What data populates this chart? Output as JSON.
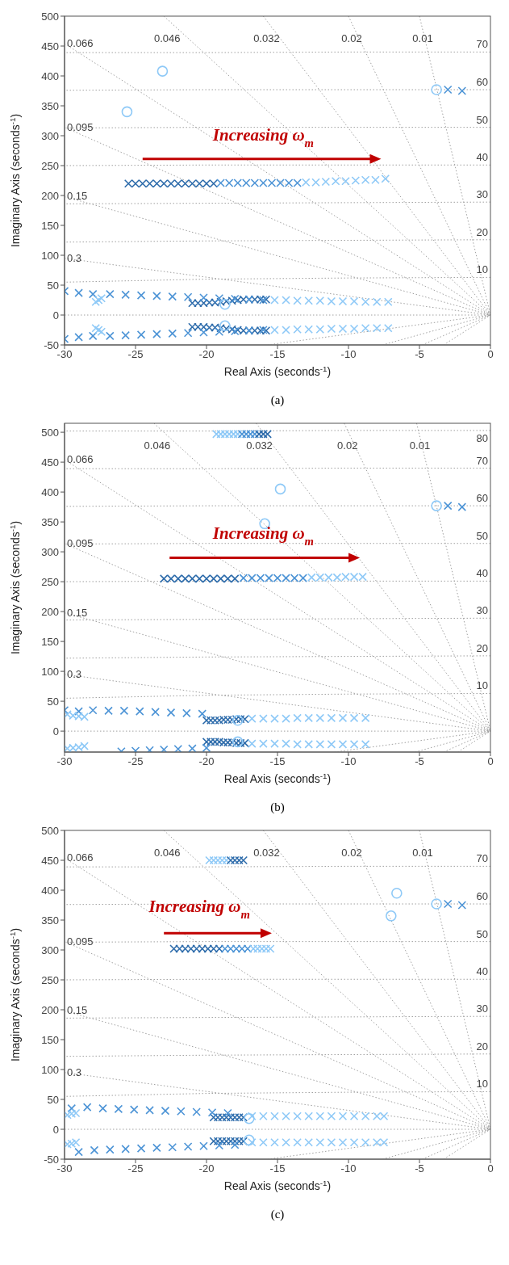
{
  "chart_data": [
    {
      "type": "scatter",
      "xlabel": "Real Axis (seconds$^{-1}$)",
      "ylabel": "Imaginary Axis (seconds$^{-1}$)",
      "annotations": [
        "Increasing ω$_{m}$",
        "(a)"
      ],
      "xlim": [
        -30,
        0
      ],
      "xticks": [
        -30,
        -25,
        -20,
        -15,
        -10,
        -5,
        0
      ],
      "ylim": [
        -50,
        500
      ],
      "yticks": [
        -50,
        0,
        50,
        100,
        150,
        200,
        250,
        300,
        350,
        400,
        450,
        500
      ],
      "series": [
        {
          "type": "line",
          "name": "0.3",
          "color": "#a0a0a0",
          "line_style": "dotted",
          "marker": "none",
          "x": [
            -30,
            0
          ],
          "values": [
            95,
            0
          ]
        },
        {
          "type": "line",
          "name": "0.15",
          "color": "#a0a0a0",
          "line_style": "dotted",
          "marker": "none",
          "x": [
            -30,
            0
          ],
          "values": [
            198,
            0
          ]
        },
        {
          "type": "line",
          "name": "0.095",
          "color": "#a0a0a0",
          "line_style": "dotted",
          "marker": "none",
          "x": [
            -30,
            0
          ],
          "values": [
            314,
            0
          ]
        },
        {
          "type": "line",
          "name": "0.066",
          "color": "#a0a0a0",
          "line_style": "dotted",
          "marker": "none",
          "x": [
            -30,
            0
          ],
          "values": [
            454,
            0
          ]
        },
        {
          "type": "line",
          "name": "0.046",
          "color": "#a0a0a0",
          "line_style": "dotted",
          "marker": "none",
          "x": [
            -23,
            0
          ],
          "values": [
            500,
            0
          ]
        },
        {
          "type": "line",
          "name": "0.032",
          "color": "#a0a0a0",
          "line_style": "dotted",
          "marker": "none",
          "x": [
            -16,
            0
          ],
          "values": [
            500,
            0
          ]
        },
        {
          "type": "line",
          "name": "0.02",
          "color": "#a0a0a0",
          "line_style": "dotted",
          "marker": "none",
          "x": [
            -10,
            0
          ],
          "values": [
            500,
            0
          ]
        },
        {
          "type": "line",
          "name": "0.01",
          "color": "#a0a0a0",
          "line_style": "dotted",
          "marker": "none",
          "x": [
            -5,
            0
          ],
          "values": [
            500,
            0
          ]
        },
        {
          "type": "line",
          "color": "#a0a0a0",
          "line_style": "dotted",
          "marker": "none",
          "x": [
            -15.7,
            0
          ],
          "values": [
            -50,
            0
          ]
        },
        {
          "type": "line",
          "color": "#a0a0a0",
          "line_style": "dotted",
          "marker": "none",
          "x": [
            -7.6,
            0
          ],
          "values": [
            -50,
            0
          ]
        },
        {
          "type": "line",
          "color": "#a0a0a0",
          "line_style": "dotted",
          "marker": "none",
          "x": [
            -4.8,
            0
          ],
          "values": [
            -50,
            0
          ]
        },
        {
          "type": "line",
          "color": "#a0a0a0",
          "line_style": "dotted",
          "marker": "none",
          "x": [
            -3.3,
            0
          ],
          "values": [
            -50,
            0
          ]
        },
        {
          "type": "line",
          "color": "#a0a0a0",
          "line_style": "dotted",
          "marker": "none",
          "x": [
            -30,
            0
          ],
          "values": [
            0,
            0
          ]
        },
        {
          "type": "line",
          "name": "10",
          "color": "#a0a0a0",
          "line_style": "dotted",
          "marker": "none",
          "x": [
            0,
            -10,
            -20,
            -30
          ],
          "values": [
            63,
            62,
            60,
            55
          ]
        },
        {
          "type": "line",
          "name": "20",
          "color": "#a0a0a0",
          "line_style": "dotted",
          "marker": "none",
          "x": [
            0,
            -10,
            -20,
            -30
          ],
          "values": [
            126,
            125,
            124,
            122
          ]
        },
        {
          "type": "line",
          "name": "30",
          "color": "#a0a0a0",
          "line_style": "dotted",
          "marker": "none",
          "x": [
            0,
            -10,
            -20,
            -30
          ],
          "values": [
            189,
            188,
            187,
            186
          ]
        },
        {
          "type": "line",
          "name": "40",
          "color": "#a0a0a0",
          "line_style": "dotted",
          "marker": "none",
          "x": [
            0,
            -10,
            -20,
            -30
          ],
          "values": [
            251,
            251,
            251,
            250
          ]
        },
        {
          "type": "line",
          "name": "50",
          "color": "#a0a0a0",
          "line_style": "dotted",
          "marker": "none",
          "x": [
            0,
            -10,
            -20,
            -30
          ],
          "values": [
            314,
            314,
            314,
            313
          ]
        },
        {
          "type": "line",
          "name": "60",
          "color": "#a0a0a0",
          "line_style": "dotted",
          "marker": "none",
          "x": [
            0,
            -10,
            -20,
            -30
          ],
          "values": [
            377,
            377,
            377,
            376
          ]
        },
        {
          "type": "line",
          "name": "70",
          "color": "#a0a0a0",
          "line_style": "dotted",
          "marker": "none",
          "x": [
            0,
            -10,
            -20,
            -30
          ],
          "values": [
            440,
            440,
            439,
            439
          ]
        },
        {
          "marker": "cross",
          "color": "#2e6cab",
          "x": [
            -25.5,
            -25,
            -24.5,
            -24,
            -23.5,
            -23,
            -22.5,
            -22,
            -21.5,
            -21,
            -20.5,
            -20,
            -19.5
          ],
          "values": [
            220,
            220,
            220,
            220,
            220,
            220,
            220,
            220,
            220,
            220,
            220,
            220,
            220
          ]
        },
        {
          "marker": "cross",
          "color": "#4d94d6",
          "x": [
            -19,
            -18.4,
            -17.8,
            -17.2,
            -16.6,
            -16,
            -15.4,
            -14.8,
            -14.2,
            -13.6
          ],
          "values": [
            221,
            221,
            221,
            221,
            221,
            221,
            221,
            221,
            221,
            221
          ]
        },
        {
          "marker": "cross",
          "color": "#8ec9f7",
          "x": [
            -13,
            -12.3,
            -11.6,
            -10.9,
            -10.2,
            -9.5,
            -8.8,
            -8.1,
            -7.4
          ],
          "values": [
            222,
            222,
            223,
            224,
            224,
            225,
            226,
            226,
            228
          ]
        },
        {
          "marker": "cross",
          "color": "#2e6cab",
          "x": [
            -21,
            -20.6,
            -20.2,
            -19.8,
            -19.4,
            -19,
            -18.6,
            -18.2,
            -17.8,
            -17.4,
            -17,
            -16.6,
            -16.2,
            -15.8
          ],
          "values": [
            20,
            20,
            20,
            21,
            21,
            22,
            23,
            24,
            25,
            26,
            26,
            26,
            26,
            26
          ]
        },
        {
          "marker": "cross",
          "color": "#2e6cab",
          "x": [
            -21,
            -20.6,
            -20.2,
            -19.8,
            -19.4,
            -19,
            -18.6,
            -18.2,
            -17.8,
            -17.4,
            -17,
            -16.6,
            -16.2,
            -15.8
          ],
          "values": [
            -20,
            -20,
            -20,
            -21,
            -21,
            -22,
            -23,
            -24,
            -25,
            -26,
            -26,
            -26,
            -26,
            -26
          ]
        },
        {
          "marker": "cross",
          "color": "#8ec9f7",
          "x": [
            -15.2,
            -14.4,
            -13.6,
            -12.8,
            -12,
            -11.2,
            -10.4,
            -9.6,
            -8.8,
            -8,
            -7.2
          ],
          "values": [
            25,
            25,
            24,
            24,
            24,
            23,
            23,
            23,
            22,
            22,
            22
          ]
        },
        {
          "marker": "cross",
          "color": "#8ec9f7",
          "x": [
            -15.2,
            -14.4,
            -13.6,
            -12.8,
            -12,
            -11.2,
            -10.4,
            -9.6,
            -8.8,
            -8,
            -7.2
          ],
          "values": [
            -25,
            -25,
            -24,
            -24,
            -24,
            -23,
            -23,
            -23,
            -22,
            -22,
            -22
          ]
        },
        {
          "marker": "cross",
          "color": "#4d94d6",
          "x": [
            -30,
            -29,
            -28,
            -26.8,
            -25.7,
            -24.6,
            -23.5,
            -22.4,
            -21.3,
            -20.2,
            -19.1,
            -18,
            -17,
            -16
          ],
          "values": [
            40,
            37,
            35,
            35,
            34,
            33,
            32,
            31,
            30,
            29,
            28,
            27,
            26,
            25
          ]
        },
        {
          "marker": "cross",
          "color": "#4d94d6",
          "x": [
            -30,
            -29,
            -28,
            -26.8,
            -25.7,
            -24.6,
            -23.5,
            -22.4,
            -21.3,
            -20.2,
            -19.1,
            -18,
            -17,
            -16
          ],
          "values": [
            -40,
            -37,
            -35,
            -35,
            -34,
            -33,
            -32,
            -31,
            -30,
            -29,
            -28,
            -27,
            -26,
            -25
          ]
        },
        {
          "marker": "cross",
          "color": "#8ec9f7",
          "x": [
            -27.8,
            -27.6,
            -27.4,
            -27.8,
            -27.6,
            -27.4
          ],
          "values": [
            22,
            25,
            28,
            -22,
            -25,
            -28
          ]
        },
        {
          "marker": "cross",
          "color": "#4d94d6",
          "x": [
            -3,
            -2
          ],
          "values": [
            377,
            375
          ]
        },
        {
          "marker": "circle",
          "color": "#8ec9f7",
          "x": [
            -25.6,
            -23.1,
            -18.7,
            -18.7,
            -3.8
          ],
          "values": [
            340,
            408,
            18,
            -18,
            377
          ]
        }
      ]
    },
    {
      "type": "scatter",
      "xlabel": "Real Axis (seconds$^{-1}$)",
      "ylabel": "Imaginary Axis (seconds$^{-1}$)",
      "annotations": [
        "Increasing ω$_{m}$",
        "(b)"
      ],
      "xlim": [
        -30,
        0
      ],
      "xticks": [
        -30,
        -25,
        -20,
        -15,
        -10,
        -5,
        0
      ],
      "ylim": [
        -35,
        515
      ],
      "yticks": [
        0,
        50,
        100,
        150,
        200,
        250,
        300,
        350,
        400,
        450,
        500
      ],
      "series": [
        {
          "type": "line",
          "name": "0.3",
          "color": "#a0a0a0",
          "line_style": "dotted",
          "marker": "none",
          "x": [
            -30,
            0
          ],
          "values": [
            95,
            0
          ]
        },
        {
          "type": "line",
          "name": "0.15",
          "color": "#a0a0a0",
          "line_style": "dotted",
          "marker": "none",
          "x": [
            -30,
            0
          ],
          "values": [
            198,
            0
          ]
        },
        {
          "type": "line",
          "name": "0.095",
          "color": "#a0a0a0",
          "line_style": "dotted",
          "marker": "none",
          "x": [
            -30,
            0
          ],
          "values": [
            314,
            0
          ]
        },
        {
          "type": "line",
          "name": "0.066",
          "color": "#a0a0a0",
          "line_style": "dotted",
          "marker": "none",
          "x": [
            -30,
            0
          ],
          "values": [
            454,
            0
          ]
        },
        {
          "type": "line",
          "name": "0.046",
          "color": "#a0a0a0",
          "line_style": "dotted",
          "marker": "none",
          "x": [
            -23.7,
            0
          ],
          "values": [
            515,
            0
          ]
        },
        {
          "type": "line",
          "name": "0.032",
          "color": "#a0a0a0",
          "line_style": "dotted",
          "marker": "none",
          "x": [
            -16.5,
            0
          ],
          "values": [
            515,
            0
          ]
        },
        {
          "type": "line",
          "name": "0.02",
          "color": "#a0a0a0",
          "line_style": "dotted",
          "marker": "none",
          "x": [
            -10.3,
            0
          ],
          "values": [
            515,
            0
          ]
        },
        {
          "type": "line",
          "name": "0.01",
          "color": "#a0a0a0",
          "line_style": "dotted",
          "marker": "none",
          "x": [
            -5.2,
            0
          ],
          "values": [
            515,
            0
          ]
        },
        {
          "type": "line",
          "color": "#a0a0a0",
          "line_style": "dotted",
          "marker": "none",
          "x": [
            -11,
            0
          ],
          "values": [
            -35,
            0
          ]
        },
        {
          "type": "line",
          "color": "#a0a0a0",
          "line_style": "dotted",
          "marker": "none",
          "x": [
            -5.3,
            0
          ],
          "values": [
            -35,
            0
          ]
        },
        {
          "type": "line",
          "color": "#a0a0a0",
          "line_style": "dotted",
          "marker": "none",
          "x": [
            -3.3,
            0
          ],
          "values": [
            -35,
            0
          ]
        },
        {
          "type": "line",
          "color": "#a0a0a0",
          "line_style": "dotted",
          "marker": "none",
          "x": [
            -2.3,
            0
          ],
          "values": [
            -35,
            0
          ]
        },
        {
          "type": "line",
          "color": "#a0a0a0",
          "line_style": "dotted",
          "marker": "none",
          "x": [
            -30,
            0
          ],
          "values": [
            0,
            0
          ]
        },
        {
          "type": "line",
          "name": "10",
          "color": "#a0a0a0",
          "line_style": "dotted",
          "marker": "none",
          "x": [
            0,
            -10,
            -20,
            -30
          ],
          "values": [
            63,
            62,
            60,
            55
          ]
        },
        {
          "type": "line",
          "name": "20",
          "color": "#a0a0a0",
          "line_style": "dotted",
          "marker": "none",
          "x": [
            0,
            -10,
            -20,
            -30
          ],
          "values": [
            126,
            125,
            124,
            122
          ]
        },
        {
          "type": "line",
          "name": "30",
          "color": "#a0a0a0",
          "line_style": "dotted",
          "marker": "none",
          "x": [
            0,
            -10,
            -20,
            -30
          ],
          "values": [
            189,
            188,
            187,
            186
          ]
        },
        {
          "type": "line",
          "name": "40",
          "color": "#a0a0a0",
          "line_style": "dotted",
          "marker": "none",
          "x": [
            0,
            -10,
            -20,
            -30
          ],
          "values": [
            251,
            251,
            251,
            250
          ]
        },
        {
          "type": "line",
          "name": "50",
          "color": "#a0a0a0",
          "line_style": "dotted",
          "marker": "none",
          "x": [
            0,
            -10,
            -20,
            -30
          ],
          "values": [
            314,
            314,
            314,
            313
          ]
        },
        {
          "type": "line",
          "name": "60",
          "color": "#a0a0a0",
          "line_style": "dotted",
          "marker": "none",
          "x": [
            0,
            -10,
            -20,
            -30
          ],
          "values": [
            377,
            377,
            377,
            376
          ]
        },
        {
          "type": "line",
          "name": "70",
          "color": "#a0a0a0",
          "line_style": "dotted",
          "marker": "none",
          "x": [
            0,
            -10,
            -20,
            -30
          ],
          "values": [
            440,
            440,
            439,
            439
          ]
        },
        {
          "type": "line",
          "name": "80",
          "color": "#a0a0a0",
          "line_style": "dotted",
          "marker": "none",
          "x": [
            0,
            -10,
            -20,
            -30
          ],
          "values": [
            503,
            503,
            502,
            502
          ]
        },
        {
          "marker": "cross",
          "color": "#8ec9f7",
          "x": [
            -19.3,
            -19,
            -18.7,
            -18.4,
            -18.1,
            -17.8
          ],
          "values": [
            497,
            497,
            497,
            497,
            497,
            497
          ]
        },
        {
          "marker": "cross",
          "color": "#4d94d6",
          "x": [
            -17.5,
            -17.2,
            -16.9,
            -16.6
          ],
          "values": [
            497,
            497,
            497,
            497
          ]
        },
        {
          "marker": "cross",
          "color": "#2e6cab",
          "x": [
            -16.3,
            -16,
            -15.7
          ],
          "values": [
            497,
            497,
            497
          ]
        },
        {
          "marker": "cross",
          "color": "#2e6cab",
          "x": [
            -23,
            -22.5,
            -22,
            -21.5,
            -21,
            -20.5,
            -20,
            -19.5,
            -19,
            -18.5,
            -18
          ],
          "values": [
            255,
            255,
            255,
            255,
            255,
            255,
            255,
            255,
            255,
            255,
            255
          ]
        },
        {
          "marker": "cross",
          "color": "#4d94d6",
          "x": [
            -17.4,
            -16.8,
            -16.2,
            -15.6,
            -15,
            -14.4,
            -13.8,
            -13.2
          ],
          "values": [
            256,
            256,
            256,
            256,
            256,
            256,
            256,
            256
          ]
        },
        {
          "marker": "cross",
          "color": "#8ec9f7",
          "x": [
            -12.6,
            -12,
            -11.4,
            -10.8,
            -10.2,
            -9.6,
            -9
          ],
          "values": [
            257,
            257,
            257,
            257,
            258,
            258,
            258
          ]
        },
        {
          "marker": "cross",
          "color": "#2e6cab",
          "x": [
            -20,
            -19.7,
            -19.4,
            -19.1,
            -18.8,
            -18.5,
            -18.2,
            -17.9,
            -17.6,
            -17.3
          ],
          "values": [
            18,
            18,
            18,
            18,
            19,
            19,
            19,
            20,
            20,
            20
          ]
        },
        {
          "marker": "cross",
          "color": "#2e6cab",
          "x": [
            -20,
            -19.7,
            -19.4,
            -19.1,
            -18.8,
            -18.5,
            -18.2,
            -17.9,
            -17.6,
            -17.3
          ],
          "values": [
            -18,
            -18,
            -18,
            -18,
            -19,
            -19,
            -19,
            -20,
            -20,
            -20
          ]
        },
        {
          "marker": "cross",
          "color": "#8ec9f7",
          "x": [
            -16.8,
            -16,
            -15.2,
            -14.4,
            -13.6,
            -12.8,
            -12,
            -11.2,
            -10.4,
            -9.6,
            -8.8
          ],
          "values": [
            21,
            21,
            21,
            21,
            22,
            22,
            22,
            22,
            22,
            22,
            22
          ]
        },
        {
          "marker": "cross",
          "color": "#8ec9f7",
          "x": [
            -16.8,
            -16,
            -15.2,
            -14.4,
            -13.6,
            -12.8,
            -12,
            -11.2,
            -10.4,
            -9.6,
            -8.8
          ],
          "values": [
            -21,
            -21,
            -21,
            -21,
            -22,
            -22,
            -22,
            -22,
            -22,
            -22,
            -22
          ]
        },
        {
          "marker": "cross",
          "color": "#4d94d6",
          "x": [
            -30,
            -29,
            -28,
            -26.9,
            -25.8,
            -24.7,
            -23.6,
            -22.5,
            -21.4,
            -20.3
          ],
          "values": [
            35,
            33,
            35,
            34,
            34,
            33,
            32,
            31,
            30,
            29
          ]
        },
        {
          "marker": "cross",
          "color": "#4d94d6",
          "x": [
            -26,
            -25,
            -24,
            -23,
            -22,
            -21,
            -20
          ],
          "values": [
            -34,
            -33,
            -32,
            -31,
            -30,
            -29,
            -28
          ]
        },
        {
          "marker": "cross",
          "color": "#8ec9f7",
          "x": [
            -29.8,
            -29.4,
            -29,
            -28.6,
            -29.8,
            -29.4,
            -29,
            -28.6
          ],
          "values": [
            28,
            26,
            25,
            24,
            -29,
            -28,
            -27,
            -25
          ]
        },
        {
          "marker": "cross",
          "color": "#4d94d6",
          "x": [
            -3,
            -2
          ],
          "values": [
            377,
            375
          ]
        },
        {
          "marker": "circle",
          "color": "#8ec9f7",
          "x": [
            -15.9,
            -14.8,
            -17.8,
            -17.8,
            -3.8
          ],
          "values": [
            347,
            405,
            18,
            -18,
            377
          ]
        }
      ]
    },
    {
      "type": "scatter",
      "xlabel": "Real Axis (seconds$^{-1}$)",
      "ylabel": "Imaginary Axis (seconds$^{-1}$)",
      "annotations": [
        "Increasing ω$_{m}$",
        "(c)"
      ],
      "xlim": [
        -30,
        0
      ],
      "xticks": [
        -30,
        -25,
        -20,
        -15,
        -10,
        -5,
        0
      ],
      "ylim": [
        -50,
        500
      ],
      "yticks": [
        -50,
        0,
        50,
        100,
        150,
        200,
        250,
        300,
        350,
        400,
        450,
        500
      ],
      "series": [
        {
          "type": "line",
          "name": "0.3",
          "color": "#a0a0a0",
          "line_style": "dotted",
          "marker": "none",
          "x": [
            -30,
            0
          ],
          "values": [
            95,
            0
          ]
        },
        {
          "type": "line",
          "name": "0.15",
          "color": "#a0a0a0",
          "line_style": "dotted",
          "marker": "none",
          "x": [
            -30,
            0
          ],
          "values": [
            198,
            0
          ]
        },
        {
          "type": "line",
          "name": "0.095",
          "color": "#a0a0a0",
          "line_style": "dotted",
          "marker": "none",
          "x": [
            -30,
            0
          ],
          "values": [
            314,
            0
          ]
        },
        {
          "type": "line",
          "name": "0.066",
          "color": "#a0a0a0",
          "line_style": "dotted",
          "marker": "none",
          "x": [
            -30,
            0
          ],
          "values": [
            454,
            0
          ]
        },
        {
          "type": "line",
          "name": "0.046",
          "color": "#a0a0a0",
          "line_style": "dotted",
          "marker": "none",
          "x": [
            -23,
            0
          ],
          "values": [
            500,
            0
          ]
        },
        {
          "type": "line",
          "name": "0.032",
          "color": "#a0a0a0",
          "line_style": "dotted",
          "marker": "none",
          "x": [
            -16,
            0
          ],
          "values": [
            500,
            0
          ]
        },
        {
          "type": "line",
          "name": "0.02",
          "color": "#a0a0a0",
          "line_style": "dotted",
          "marker": "none",
          "x": [
            -10,
            0
          ],
          "values": [
            500,
            0
          ]
        },
        {
          "type": "line",
          "name": "0.01",
          "color": "#a0a0a0",
          "line_style": "dotted",
          "marker": "none",
          "x": [
            -5,
            0
          ],
          "values": [
            500,
            0
          ]
        },
        {
          "type": "line",
          "color": "#a0a0a0",
          "line_style": "dotted",
          "marker": "none",
          "x": [
            -15.7,
            0
          ],
          "values": [
            -50,
            0
          ]
        },
        {
          "type": "line",
          "color": "#a0a0a0",
          "line_style": "dotted",
          "marker": "none",
          "x": [
            -7.6,
            0
          ],
          "values": [
            -50,
            0
          ]
        },
        {
          "type": "line",
          "color": "#a0a0a0",
          "line_style": "dotted",
          "marker": "none",
          "x": [
            -4.8,
            0
          ],
          "values": [
            -50,
            0
          ]
        },
        {
          "type": "line",
          "color": "#a0a0a0",
          "line_style": "dotted",
          "marker": "none",
          "x": [
            -3.3,
            0
          ],
          "values": [
            -50,
            0
          ]
        },
        {
          "type": "line",
          "color": "#a0a0a0",
          "line_style": "dotted",
          "marker": "none",
          "x": [
            -30,
            0
          ],
          "values": [
            0,
            0
          ]
        },
        {
          "type": "line",
          "name": "10",
          "color": "#a0a0a0",
          "line_style": "dotted",
          "marker": "none",
          "x": [
            0,
            -10,
            -20,
            -30
          ],
          "values": [
            63,
            62,
            60,
            55
          ]
        },
        {
          "type": "line",
          "name": "20",
          "color": "#a0a0a0",
          "line_style": "dotted",
          "marker": "none",
          "x": [
            0,
            -10,
            -20,
            -30
          ],
          "values": [
            126,
            125,
            124,
            122
          ]
        },
        {
          "type": "line",
          "name": "30",
          "color": "#a0a0a0",
          "line_style": "dotted",
          "marker": "none",
          "x": [
            0,
            -10,
            -20,
            -30
          ],
          "values": [
            189,
            188,
            187,
            186
          ]
        },
        {
          "type": "line",
          "name": "40",
          "color": "#a0a0a0",
          "line_style": "dotted",
          "marker": "none",
          "x": [
            0,
            -10,
            -20,
            -30
          ],
          "values": [
            251,
            251,
            251,
            250
          ]
        },
        {
          "type": "line",
          "name": "50",
          "color": "#a0a0a0",
          "line_style": "dotted",
          "marker": "none",
          "x": [
            0,
            -10,
            -20,
            -30
          ],
          "values": [
            314,
            314,
            314,
            313
          ]
        },
        {
          "type": "line",
          "name": "60",
          "color": "#a0a0a0",
          "line_style": "dotted",
          "marker": "none",
          "x": [
            0,
            -10,
            -20,
            -30
          ],
          "values": [
            377,
            377,
            377,
            376
          ]
        },
        {
          "type": "line",
          "name": "70",
          "color": "#a0a0a0",
          "line_style": "dotted",
          "marker": "none",
          "x": [
            0,
            -10,
            -20,
            -30
          ],
          "values": [
            440,
            440,
            439,
            439
          ]
        },
        {
          "marker": "cross",
          "color": "#8ec9f7",
          "x": [
            -19.8,
            -19.5,
            -19.2,
            -18.9,
            -18.6
          ],
          "values": [
            450,
            450,
            450,
            450,
            450
          ]
        },
        {
          "marker": "cross",
          "color": "#2e6cab",
          "x": [
            -18.3,
            -18,
            -17.7,
            -17.4
          ],
          "values": [
            450,
            450,
            450,
            450
          ]
        },
        {
          "marker": "cross",
          "color": "#2e6cab",
          "x": [
            -22.3,
            -21.9,
            -21.5,
            -21.1,
            -20.7,
            -20.3,
            -19.9,
            -19.5,
            -19.1
          ],
          "values": [
            302,
            302,
            302,
            302,
            302,
            302,
            302,
            302,
            302
          ]
        },
        {
          "marker": "cross",
          "color": "#4d94d6",
          "x": [
            -18.7,
            -18.3,
            -17.9,
            -17.5,
            -17.1
          ],
          "values": [
            302,
            302,
            302,
            302,
            302
          ]
        },
        {
          "marker": "cross",
          "color": "#8ec9f7",
          "x": [
            -16.7,
            -16.4,
            -16.1,
            -15.8,
            -15.5
          ],
          "values": [
            302,
            302,
            302,
            302,
            302
          ]
        },
        {
          "marker": "cross",
          "color": "#2e6cab",
          "x": [
            -19.5,
            -19.2,
            -18.9,
            -18.6,
            -18.3,
            -18,
            -17.7,
            -17.4
          ],
          "values": [
            20,
            20,
            20,
            20,
            20,
            20,
            20,
            20
          ]
        },
        {
          "marker": "cross",
          "color": "#2e6cab",
          "x": [
            -19.5,
            -19.2,
            -18.9,
            -18.6,
            -18.3,
            -18,
            -17.7,
            -17.4
          ],
          "values": [
            -20,
            -20,
            -20,
            -20,
            -20,
            -20,
            -20,
            -20
          ]
        },
        {
          "marker": "cross",
          "color": "#8ec9f7",
          "x": [
            -16.8,
            -16,
            -15.2,
            -14.4,
            -13.6,
            -12.8,
            -12,
            -11.2,
            -10.4,
            -9.6,
            -8.8,
            -8,
            -7.5
          ],
          "values": [
            22,
            22,
            22,
            22,
            22,
            22,
            22,
            22,
            22,
            22,
            22,
            22,
            22
          ]
        },
        {
          "marker": "cross",
          "color": "#8ec9f7",
          "x": [
            -16.8,
            -16,
            -15.2,
            -14.4,
            -13.6,
            -12.8,
            -12,
            -11.2,
            -10.4,
            -9.6,
            -8.8,
            -8,
            -7.5
          ],
          "values": [
            -22,
            -22,
            -22,
            -22,
            -22,
            -22,
            -22,
            -22,
            -22,
            -22,
            -22,
            -22,
            -22
          ]
        },
        {
          "marker": "cross",
          "color": "#4d94d6",
          "x": [
            -29.5,
            -28.4,
            -27.3,
            -26.2,
            -25.1,
            -24,
            -22.9,
            -21.8,
            -20.7,
            -19.6,
            -18.5
          ],
          "values": [
            35,
            37,
            35,
            34,
            33,
            32,
            31,
            30,
            29,
            28,
            27
          ]
        },
        {
          "marker": "cross",
          "color": "#4d94d6",
          "x": [
            -29,
            -27.9,
            -26.8,
            -25.7,
            -24.6,
            -23.5,
            -22.4,
            -21.3,
            -20.2,
            -19.1,
            -18
          ],
          "values": [
            -38,
            -35,
            -34,
            -33,
            -32,
            -31,
            -30,
            -29,
            -28,
            -27,
            -26
          ]
        },
        {
          "marker": "cross",
          "color": "#8ec9f7",
          "x": [
            -29.8,
            -29.5,
            -29.2,
            -29.8,
            -29.5,
            -29.2
          ],
          "values": [
            24,
            26,
            27,
            -25,
            -24,
            -22
          ]
        },
        {
          "marker": "cross",
          "color": "#4d94d6",
          "x": [
            -3,
            -2
          ],
          "values": [
            377,
            375
          ]
        },
        {
          "marker": "circle",
          "color": "#8ec9f7",
          "x": [
            -7,
            -6.6,
            -17,
            -17,
            -3.8
          ],
          "values": [
            357,
            395,
            18,
            -18,
            377
          ]
        }
      ]
    }
  ]
}
